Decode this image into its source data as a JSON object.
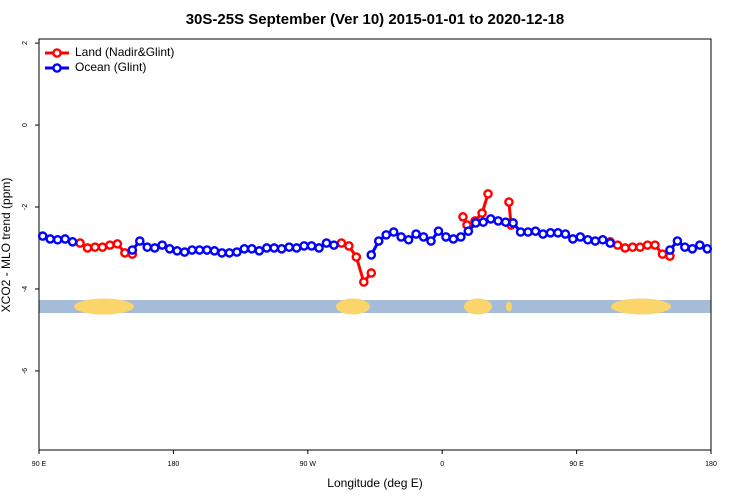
{
  "chart_data": {
    "type": "line",
    "title": "30S-25S September (Ver 10)   2015-01-01 to 2020-12-18",
    "x_label": "Longitude (deg E)",
    "y_label": "XCO2 - MLO trend (ppm)",
    "xlim": [
      90,
      540
    ],
    "xticks": [
      {
        "value": 90,
        "label": "90 E"
      },
      {
        "value": 180,
        "label": "180"
      },
      {
        "value": 270,
        "label": "90 W"
      },
      {
        "value": 360,
        "label": "0"
      },
      {
        "value": 450,
        "label": "90 E"
      },
      {
        "value": 540,
        "label": "180"
      }
    ],
    "ylim": [
      -7.93,
      2.1
    ],
    "yticks": [
      -6,
      -4,
      -2,
      0,
      2
    ],
    "legend": "top-left",
    "series": [
      {
        "name": "Land (Nadir&Glint)",
        "color": "#ff0000",
        "x": [
          117.5,
          122.5,
          127.5,
          132.5,
          137.5,
          142.5,
          147.5,
          152.5,
          200,
          292.5,
          297.5,
          302.5,
          307.5,
          312.5,
          340,
          373.9,
          376.6,
          382.0,
          386.7,
          390.7,
          398,
          404.7,
          406.1,
          440,
          472.5,
          477.5,
          482.5,
          487.5,
          492.5,
          497.5,
          502.5,
          507.5,
          512.5
        ],
        "values": [
          -2.88,
          -3.0,
          -2.98,
          -2.98,
          -2.93,
          -2.9,
          -3.12,
          -3.15,
          null,
          -2.88,
          -2.95,
          -3.22,
          -3.83,
          -3.61,
          null,
          -2.24,
          -2.44,
          -2.34,
          -2.15,
          -1.68,
          null,
          -1.88,
          -2.44,
          null,
          -2.85,
          -2.93,
          -3.0,
          -2.98,
          -2.98,
          -2.93,
          -2.93,
          -3.15,
          -3.2
        ]
      },
      {
        "name": "Ocean (Glint)",
        "color": "#0000ff",
        "x": [
          92.5,
          97.5,
          102.5,
          107.5,
          112.5,
          130,
          152.5,
          157.5,
          162.5,
          167.5,
          172.5,
          177.5,
          182.5,
          187.5,
          192.5,
          197.5,
          202.5,
          207.5,
          212.5,
          217.5,
          222.5,
          227.5,
          232.5,
          237.5,
          242.5,
          247.5,
          252.5,
          257.5,
          262.5,
          267.5,
          272.5,
          277.5,
          282.5,
          287.5,
          300,
          312.5,
          317.5,
          322.5,
          327.5,
          332.5,
          337.5,
          342.5,
          347.5,
          352.5,
          357.5,
          362.5,
          367.5,
          372.5,
          377.5,
          382.5,
          387.5,
          392.5,
          397.5,
          402.5,
          407.5,
          412.5,
          417.5,
          422.5,
          427.5,
          432.5,
          437.5,
          442.5,
          447.5,
          452.5,
          457.5,
          462.5,
          467.5,
          472.5,
          490,
          512.5,
          517.5,
          522.5,
          527.5,
          532.5,
          537.5
        ],
        "values": [
          -2.71,
          -2.78,
          -2.8,
          -2.78,
          -2.85,
          null,
          -3.05,
          -2.83,
          -2.98,
          -3.0,
          -2.93,
          -3.02,
          -3.07,
          -3.1,
          -3.05,
          -3.05,
          -3.05,
          -3.07,
          -3.12,
          -3.12,
          -3.1,
          -3.02,
          -3.02,
          -3.07,
          -3.0,
          -3.0,
          -3.02,
          -2.98,
          -3.0,
          -2.95,
          -2.95,
          -3.0,
          -2.88,
          -2.93,
          null,
          -3.17,
          -2.83,
          -2.68,
          -2.61,
          -2.73,
          -2.8,
          -2.66,
          -2.73,
          -2.83,
          -2.59,
          -2.73,
          -2.78,
          -2.73,
          -2.59,
          -2.39,
          -2.37,
          -2.29,
          -2.34,
          -2.37,
          -2.39,
          -2.61,
          -2.61,
          -2.59,
          -2.66,
          -2.63,
          -2.63,
          -2.66,
          -2.78,
          -2.73,
          -2.8,
          -2.83,
          -2.8,
          -2.88,
          null,
          -3.05,
          -2.83,
          -2.98,
          -3.02,
          -2.93,
          -3.02
        ]
      }
    ]
  }
}
